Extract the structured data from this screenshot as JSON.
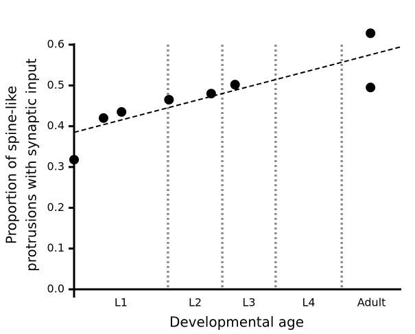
{
  "chart_data": {
    "type": "scatter",
    "x_label": "Developmental age",
    "y_label": [
      "Proportion of spine-like",
      "protrusions with synaptic input"
    ],
    "x": [
      0,
      9.0,
      14.5,
      29.0,
      41.9,
      49.2,
      90.6,
      90.6
    ],
    "values": [
      0.318,
      0.42,
      0.435,
      0.465,
      0.48,
      0.502,
      0.628,
      0.495
    ],
    "color": "#000000",
    "xlim": [
      0,
      100
    ],
    "ylim": [
      0,
      0.6
    ],
    "yticks": [
      {
        "value": 0,
        "label": "0.0"
      },
      0.1,
      0.2,
      0.3,
      0.4,
      0.5,
      0.6
    ],
    "stages": [
      "L1",
      "L2",
      "L3",
      "L4",
      "Adult"
    ],
    "stage_boundaries": [
      28.7,
      45.3,
      61.6,
      81.8
    ],
    "boundary_color": "#8c8c8c",
    "trendline": {
      "x": [
        0,
        100
      ],
      "y": [
        0.385,
        0.595
      ]
    }
  }
}
